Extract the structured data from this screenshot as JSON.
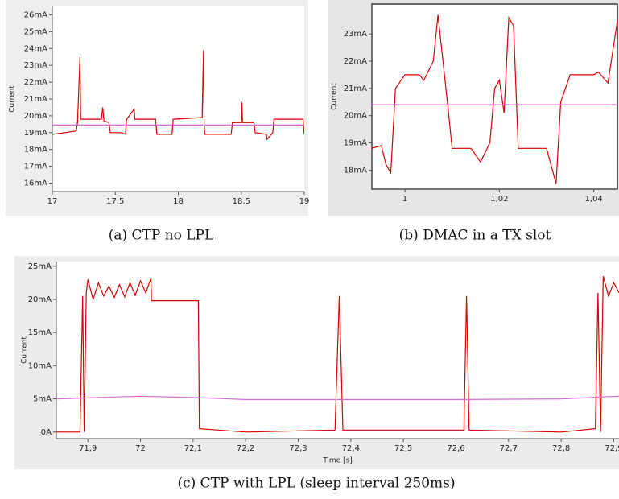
{
  "chart_data": [
    {
      "type": "line",
      "caption": "(a) CTP no LPL",
      "y_label": "Current",
      "xlim": [
        17,
        19
      ],
      "ylim": [
        15.5,
        26.5
      ],
      "xticks": [
        17,
        {
          "value": 17.5,
          "label": "17,5"
        },
        18,
        {
          "value": 18.5,
          "label": "18,5"
        },
        19
      ],
      "yticks": [
        {
          "value": 16,
          "label": "16mA"
        },
        {
          "value": 17,
          "label": "17mA"
        },
        {
          "value": 18,
          "label": "18mA"
        },
        {
          "value": 19,
          "label": "19mA"
        },
        {
          "value": 20,
          "label": "20mA"
        },
        {
          "value": 21,
          "label": "21mA"
        },
        {
          "value": 22,
          "label": "22mA"
        },
        {
          "value": 23,
          "label": "23mA"
        },
        {
          "value": 24,
          "label": "24mA"
        },
        {
          "value": 25,
          "label": "25mA"
        },
        {
          "value": 26,
          "label": "26mA"
        }
      ],
      "series": [
        {
          "color": "#d80000",
          "x": [
            17,
            17.1,
            17.19,
            17.2,
            17.22,
            17.225,
            17.23,
            17.3,
            17.39,
            17.4,
            17.41,
            17.45,
            17.46,
            17.55,
            17.58,
            17.59,
            17.65,
            17.655,
            17.66,
            17.82,
            17.83,
            17.9,
            17.95,
            17.96,
            18.19,
            18.2,
            18.205,
            18.21,
            18.3,
            18.42,
            18.43,
            18.5,
            18.505,
            18.51,
            18.6,
            18.61,
            18.7,
            18.705,
            18.75,
            18.76,
            18.99,
            19
          ],
          "values": [
            18.9,
            19.0,
            19.1,
            19.6,
            23.5,
            19.8,
            19.8,
            19.8,
            19.8,
            20.5,
            19.7,
            19.6,
            19.0,
            19.0,
            18.9,
            19.8,
            20.4,
            19.8,
            19.8,
            19.8,
            18.9,
            18.9,
            18.9,
            19.8,
            19.9,
            23.9,
            19.5,
            18.9,
            18.9,
            18.9,
            19.6,
            19.6,
            20.8,
            19.6,
            19.6,
            19.0,
            18.9,
            18.6,
            19.0,
            19.8,
            19.8,
            18.9
          ]
        },
        {
          "color": "#d86ad8",
          "x": [
            17,
            19
          ],
          "values": [
            19.45,
            19.45
          ]
        }
      ]
    },
    {
      "type": "line",
      "caption": "(b) DMAC in a TX slot",
      "y_label": "Current",
      "xlim": [
        0.993,
        1.045
      ],
      "ylim": [
        17.3,
        24.1
      ],
      "xticks": [
        1,
        {
          "value": 1.02,
          "label": "1,02"
        },
        {
          "value": 1.04,
          "label": "1,04"
        }
      ],
      "yticks": [
        {
          "value": 18,
          "label": "18mA"
        },
        {
          "value": 19,
          "label": "19mA"
        },
        {
          "value": 20,
          "label": "20mA"
        },
        {
          "value": 21,
          "label": "21mA"
        },
        {
          "value": 22,
          "label": "22mA"
        },
        {
          "value": 23,
          "label": "23mA"
        }
      ],
      "series": [
        {
          "color": "#d80000",
          "x": [
            0.993,
            0.995,
            0.996,
            0.997,
            0.998,
            1.0,
            1.003,
            1.004,
            1.006,
            1.007,
            1.009,
            1.01,
            1.014,
            1.016,
            1.018,
            1.019,
            1.02,
            1.021,
            1.022,
            1.023,
            1.024,
            1.03,
            1.032,
            1.033,
            1.035,
            1.04,
            1.041,
            1.043,
            1.045
          ],
          "values": [
            18.8,
            18.9,
            18.2,
            17.9,
            21.0,
            21.5,
            21.5,
            21.3,
            22.0,
            23.7,
            20.5,
            18.8,
            18.8,
            18.3,
            19.0,
            21.0,
            21.3,
            20.1,
            23.6,
            23.3,
            18.8,
            18.8,
            17.5,
            20.5,
            21.5,
            21.5,
            21.6,
            21.2,
            23.5
          ]
        },
        {
          "color": "#d86ad8",
          "x": [
            0.993,
            1.045
          ],
          "values": [
            20.4,
            20.4
          ]
        }
      ]
    },
    {
      "type": "line",
      "caption": "(c) CTP with LPL (sleep interval 250ms)",
      "y_label": "Current",
      "x_label": "Time [s]",
      "xlim": [
        71.84,
        72.91
      ],
      "ylim": [
        -1,
        25.7
      ],
      "xticks": [
        {
          "value": 71.9,
          "label": "71,9"
        },
        72,
        {
          "value": 72.1,
          "label": "72,1"
        },
        {
          "value": 72.2,
          "label": "72,2"
        },
        {
          "value": 72.3,
          "label": "72,3"
        },
        {
          "value": 72.4,
          "label": "72,4"
        },
        {
          "value": 72.5,
          "label": "72,5"
        },
        {
          "value": 72.6,
          "label": "72,6"
        },
        {
          "value": 72.7,
          "label": "72,7"
        },
        {
          "value": 72.8,
          "label": "72,8"
        },
        {
          "value": 72.9,
          "label": "72,9"
        }
      ],
      "yticks": [
        {
          "value": 0,
          "label": "0A"
        },
        {
          "value": 5,
          "label": "5mA"
        },
        {
          "value": 10,
          "label": "10mA"
        },
        {
          "value": 15,
          "label": "15mA"
        },
        {
          "value": 20,
          "label": "20mA"
        },
        {
          "value": 25,
          "label": "25mA"
        }
      ],
      "series": [
        {
          "color": "#d80000",
          "x": [
            71.84,
            71.885,
            71.89,
            71.893,
            71.897,
            71.9,
            71.91,
            71.92,
            71.93,
            71.94,
            71.95,
            71.96,
            71.97,
            71.98,
            71.99,
            72.0,
            72.01,
            72.02,
            72.021,
            72.11,
            72.112,
            72.2,
            72.37,
            72.378,
            72.385,
            72.5,
            72.615,
            72.62,
            72.625,
            72.8,
            72.865,
            72.87,
            72.875,
            72.88,
            72.89,
            72.9,
            72.91
          ],
          "values": [
            0,
            0,
            20.5,
            0,
            21,
            23,
            20,
            22.5,
            20.5,
            22,
            20.3,
            22.2,
            20.4,
            22.5,
            20.6,
            22.8,
            21,
            23.2,
            19.8,
            19.8,
            0.5,
            0,
            0.3,
            20.5,
            0.3,
            0.3,
            0.3,
            20.5,
            0.3,
            0,
            0.5,
            21,
            0,
            23.5,
            20.5,
            22.5,
            21
          ]
        },
        {
          "color": "#d86ad8",
          "x": [
            71.84,
            72.0,
            72.1,
            72.2,
            72.6,
            72.8,
            72.91
          ],
          "values": [
            5,
            5.4,
            5.2,
            4.9,
            4.9,
            5.0,
            5.4
          ]
        }
      ]
    }
  ]
}
